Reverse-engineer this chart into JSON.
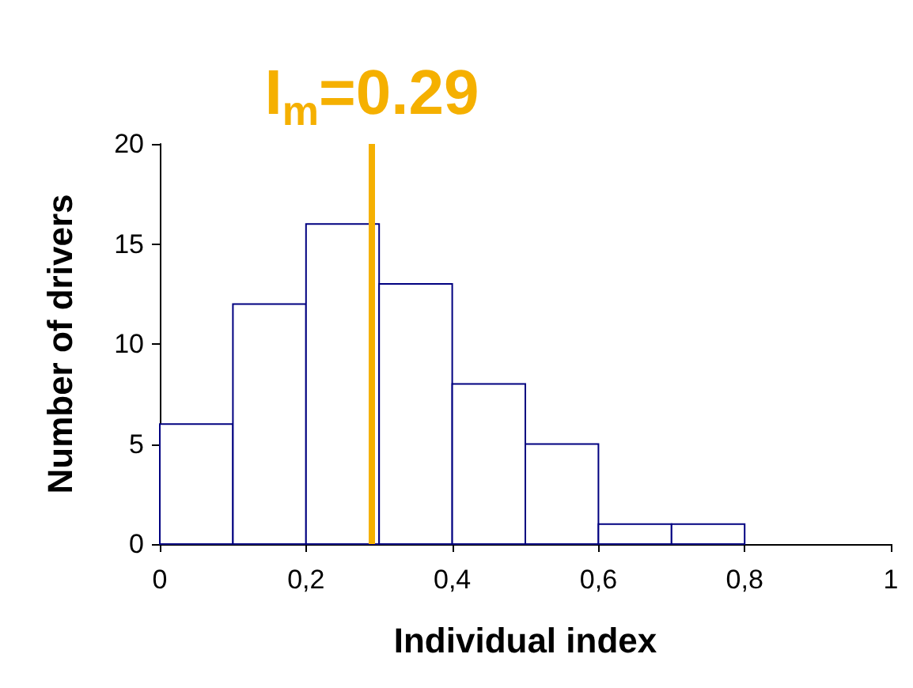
{
  "chart_data": {
    "type": "histogram",
    "xlabel": "Individual index",
    "ylabel": "Number of drivers",
    "bins": [
      0,
      0.1,
      0.2,
      0.3,
      0.4,
      0.5,
      0.6,
      0.7,
      0.8
    ],
    "values": [
      6,
      12,
      16,
      13,
      8,
      5,
      1,
      1
    ],
    "color": "#000080",
    "xlim": [
      0,
      1
    ],
    "xticks": [
      {
        "value": 0,
        "label": "0"
      },
      {
        "value": 0.2,
        "label": "0,2"
      },
      {
        "value": 0.4,
        "label": "0,4"
      },
      {
        "value": 0.6,
        "label": "0,6"
      },
      {
        "value": 0.8,
        "label": "0,8"
      },
      {
        "value": 1,
        "label": "1"
      }
    ],
    "ylim": [
      0,
      20
    ],
    "yticks": [
      0,
      5,
      10,
      15,
      20
    ],
    "ref_lines": [
      {
        "axis": "x",
        "value": 0.29,
        "label": "I$_{m}$=0.29",
        "color": "#f5b000"
      }
    ],
    "grid": false
  }
}
